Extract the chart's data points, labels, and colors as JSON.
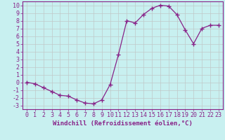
{
  "x": [
    0,
    1,
    2,
    3,
    4,
    5,
    6,
    7,
    8,
    9,
    10,
    11,
    12,
    13,
    14,
    15,
    16,
    17,
    18,
    19,
    20,
    21,
    22,
    23
  ],
  "y": [
    0.0,
    -0.2,
    -0.7,
    -1.2,
    -1.7,
    -1.8,
    -2.3,
    -2.7,
    -2.8,
    -2.3,
    -0.3,
    3.6,
    8.0,
    7.7,
    8.8,
    9.6,
    10.0,
    9.9,
    8.8,
    6.8,
    5.0,
    7.0,
    7.4,
    7.4
  ],
  "line_color": "#882288",
  "marker": "+",
  "marker_size": 4,
  "bg_color": "#c8f0f0",
  "grid_color": "#c0c8c8",
  "xlabel": "Windchill (Refroidissement éolien,°C)",
  "ylim": [
    -3.5,
    10.5
  ],
  "xlim": [
    -0.5,
    23.5
  ],
  "yticks": [
    -3,
    -2,
    -1,
    0,
    1,
    2,
    3,
    4,
    5,
    6,
    7,
    8,
    9,
    10
  ],
  "xticks": [
    0,
    1,
    2,
    3,
    4,
    5,
    6,
    7,
    8,
    9,
    10,
    11,
    12,
    13,
    14,
    15,
    16,
    17,
    18,
    19,
    20,
    21,
    22,
    23
  ],
  "tick_color": "#882288",
  "label_color": "#882288",
  "label_fontsize": 6.5,
  "tick_fontsize": 6.0,
  "spine_color": "#882288"
}
